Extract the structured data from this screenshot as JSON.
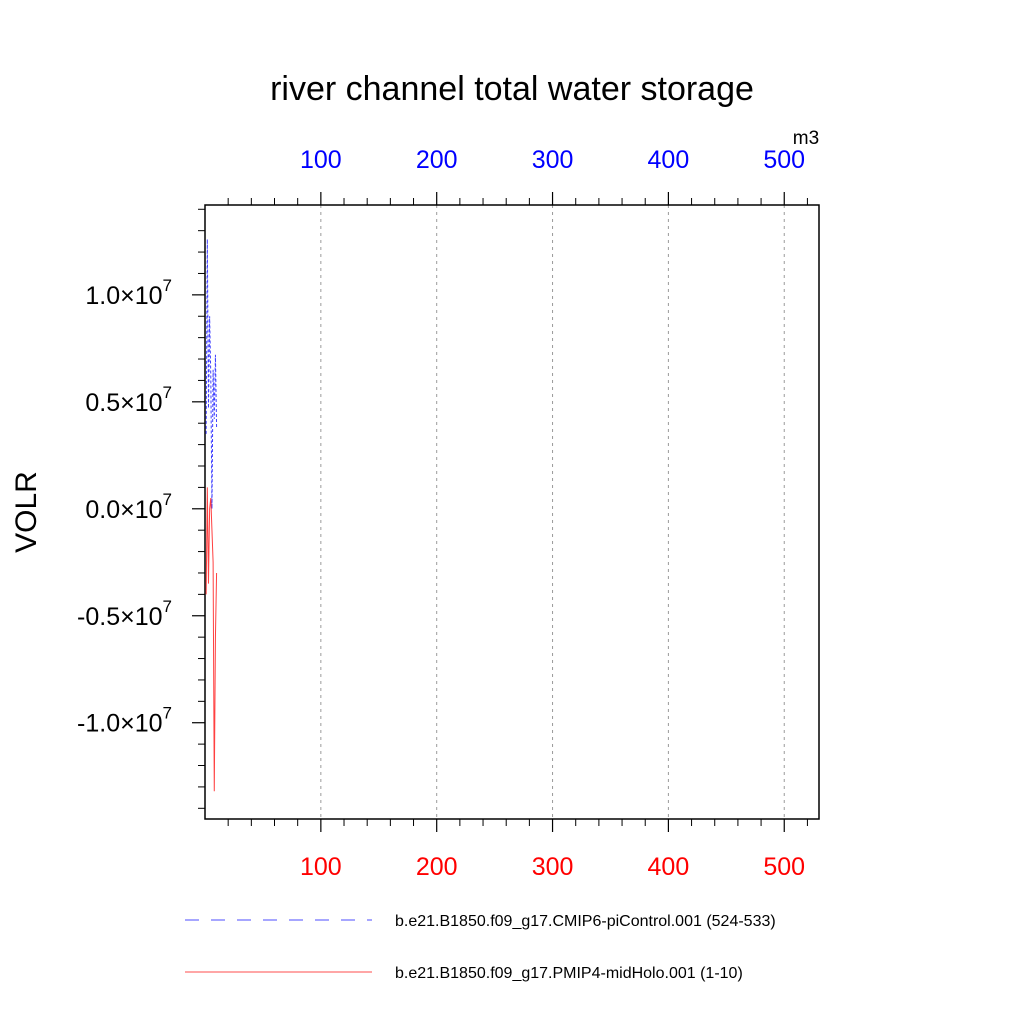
{
  "chart_data": {
    "type": "line",
    "title": "river channel total water storage",
    "units": "m3",
    "ylabel": "VOLR",
    "xlabel": "",
    "xlim": [
      0,
      530
    ],
    "ylim": [
      -14500000,
      14200000
    ],
    "ytick_values": [
      10000000,
      5000000,
      0,
      -5000000,
      -10000000
    ],
    "ytick_labels": [
      {
        "mantissa": "1.0",
        "exponent": "7"
      },
      {
        "mantissa": "0.5",
        "exponent": "7"
      },
      {
        "mantissa": "0.0",
        "exponent": "7"
      },
      {
        "mantissa": "-0.5",
        "exponent": "7"
      },
      {
        "mantissa": "-1.0",
        "exponent": "7"
      }
    ],
    "top_axis": {
      "ticks": [
        100,
        200,
        300,
        400,
        500
      ],
      "labels": [
        "100",
        "200",
        "300",
        "400",
        "500"
      ],
      "color": "#0000ff"
    },
    "bottom_axis": {
      "ticks": [
        100,
        200,
        300,
        400,
        500
      ],
      "labels": [
        "100",
        "200",
        "300",
        "400",
        "500"
      ],
      "color": "#ff0000"
    },
    "grid": "vertical dashed at major x ticks",
    "legend_placement": "bottom",
    "series": [
      {
        "name": "b.e21.B1850.f09_g17.CMIP6-piControl.001 (524-533)",
        "color": "#0000ff",
        "dash": "dashed",
        "x": [
          1,
          2,
          3,
          4,
          5,
          6,
          7,
          8,
          9,
          10
        ],
        "y": [
          3500000,
          12600000,
          4700000,
          9000000,
          6200000,
          0,
          6500000,
          4200000,
          7200000,
          3800000
        ]
      },
      {
        "name": "b.e21.B1850.f09_g17.PMIP4-midHolo.001 (1-10)",
        "color": "#ff0000",
        "dash": "solid",
        "x": [
          1,
          2,
          3,
          4,
          5,
          6,
          7,
          8,
          9,
          10
        ],
        "y": [
          -4000000,
          1000000,
          -3500000,
          0,
          500000,
          -1000000,
          -2500000,
          -13200000,
          -6000000,
          -3000000
        ]
      }
    ]
  }
}
